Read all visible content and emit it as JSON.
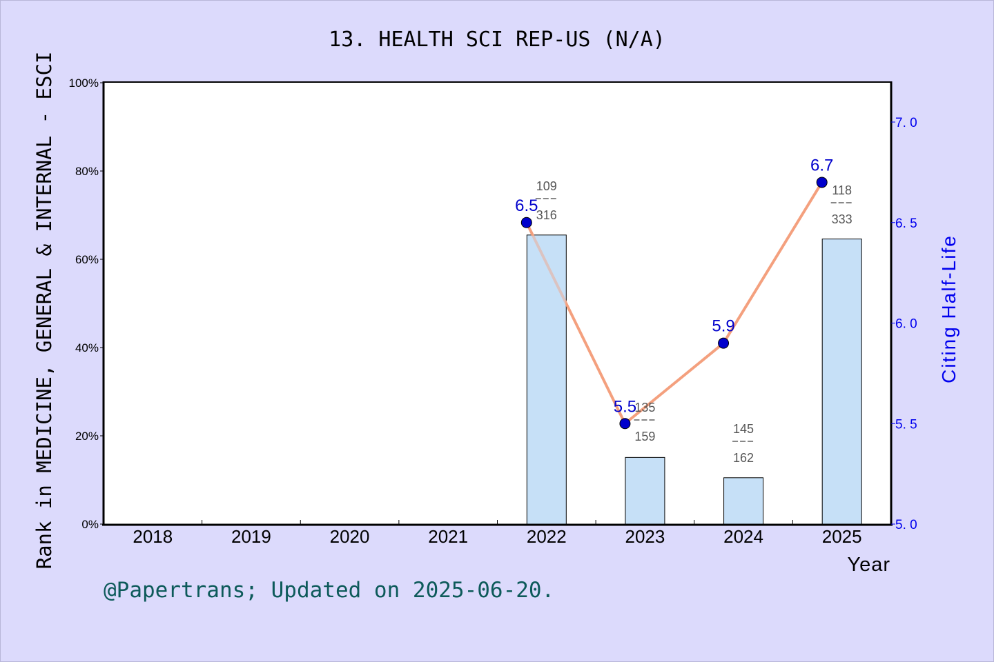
{
  "chart_data": {
    "type": "bar+line",
    "title": "13. HEALTH SCI REP-US (N/A)",
    "xlabel": "Year",
    "ylabel_left": "Rank in MEDICINE, GENERAL & INTERNAL - ESCI",
    "ylabel_right": "Citing Half-Life",
    "categories": [
      "2018",
      "2019",
      "2020",
      "2021",
      "2022",
      "2023",
      "2024",
      "2025"
    ],
    "left_axis": {
      "ylim": [
        0,
        100
      ],
      "ticks": [
        "0%",
        "20%",
        "40%",
        "60%",
        "80%",
        "100%"
      ]
    },
    "right_axis": {
      "ylim": [
        5.0,
        7.2
      ],
      "ticks": [
        "5.0",
        "5.5",
        "6.0",
        "6.5",
        "7.0"
      ]
    },
    "series": [
      {
        "name": "Rank percentile (bar)",
        "type": "bar",
        "color": "#c6e0f7",
        "values": [
          null,
          null,
          null,
          null,
          65.5,
          15.1,
          10.5,
          64.6
        ],
        "labels": [
          null,
          null,
          null,
          null,
          {
            "rank": "109",
            "total": "316"
          },
          {
            "rank": "135",
            "total": "159"
          },
          {
            "rank": "145",
            "total": "162"
          },
          {
            "rank": "118",
            "total": "333"
          }
        ]
      },
      {
        "name": "Citing Half-Life (line)",
        "type": "line",
        "color": "#f4a07e",
        "marker_color": "#0000cc",
        "values": [
          null,
          null,
          null,
          null,
          6.5,
          5.5,
          5.9,
          6.7
        ],
        "labels": [
          null,
          null,
          null,
          null,
          "6.5",
          "5.5",
          "5.9",
          "6.7"
        ]
      }
    ],
    "grid": false,
    "legend": "none"
  },
  "footer": "@Papertrans; Updated on 2025-06-20.",
  "colors": {
    "background": "#dcdafc",
    "plot_bg": "#ffffff",
    "bar": "#c6e0f7",
    "line": "#f4a07e",
    "marker": "#0000cc",
    "right_axis": "#0000ee",
    "footer": "#0d5a5a"
  }
}
